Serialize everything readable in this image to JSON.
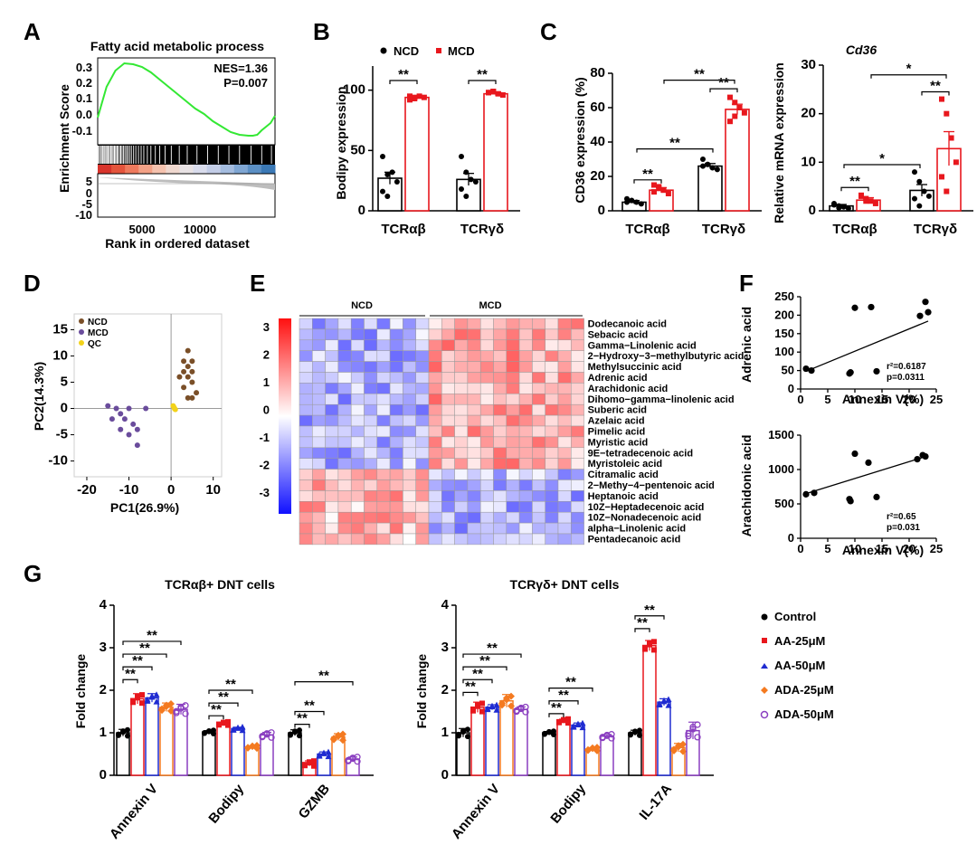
{
  "panel_labels": [
    "A",
    "B",
    "C",
    "D",
    "E",
    "F",
    "G"
  ],
  "colors": {
    "ncd": "#000000",
    "mcd": "#e8171d",
    "aa25": "#e8171d",
    "aa50": "#1f2bd1",
    "ada25": "#f47a20",
    "ada50": "#8a3fc0",
    "purple": "#6a4c9c",
    "brown": "#7a4f28",
    "qc": "#f2d21a",
    "green": "#33e833"
  },
  "chart_data": [
    {
      "id": "A",
      "type": "line",
      "title": "Fatty acid metabolic process",
      "ylabel": "Enrichment Score",
      "xlabel": "Rank in ordered dataset",
      "yticks": [
        "0.3",
        "0.2",
        "0.1",
        "0.0",
        "-0.1"
      ],
      "ylim": [
        -0.15,
        0.33
      ],
      "lower_yticks": [
        "5",
        "0",
        "-5",
        "-10"
      ],
      "xticks": [
        "5000",
        "10000"
      ],
      "xlim": [
        0,
        20000
      ],
      "annotations": [
        "NES=1.36",
        "P=0.007"
      ],
      "x": [
        0,
        1000,
        2000,
        3000,
        4000,
        5000,
        6000,
        7000,
        8000,
        9000,
        10000,
        11000,
        12000,
        13000,
        14000,
        15000,
        16000,
        17000,
        17500,
        18000,
        18500,
        19000,
        19500,
        20000
      ],
      "y": [
        0.0,
        0.17,
        0.26,
        0.3,
        0.295,
        0.28,
        0.25,
        0.21,
        0.17,
        0.13,
        0.09,
        0.05,
        0.02,
        -0.02,
        -0.05,
        -0.08,
        -0.095,
        -0.1,
        -0.1,
        -0.095,
        -0.07,
        -0.05,
        -0.03,
        0.01
      ],
      "hits": [
        50,
        180,
        320,
        430,
        560,
        640,
        780,
        900,
        1010,
        1130,
        1220,
        1350,
        1480,
        1600,
        1720,
        1850,
        1930,
        2050,
        2180,
        2300,
        2470,
        2600,
        2750,
        2900,
        3070,
        3250,
        3400,
        3600,
        3800,
        4050,
        4300,
        4600,
        4900,
        5200,
        5600,
        6000,
        6500,
        7000,
        7600,
        8300,
        9200,
        10100,
        11200,
        12400,
        13600,
        14800,
        16000,
        17300,
        18500,
        19600
      ],
      "color_strip": [
        "#d8342c",
        "#e4543c",
        "#ee7a5d",
        "#f3a186",
        "#f5c2ae",
        "#efd8cf",
        "#e8e2e4",
        "#d9dcec",
        "#c3cde7",
        "#a4bcdf",
        "#7fa6d3",
        "#5b8fc4",
        "#3b79b6"
      ]
    },
    {
      "id": "B",
      "type": "bar",
      "ylabel": "Bodipy expression",
      "ylim": [
        0,
        120
      ],
      "yticks": [
        "0",
        "50",
        "100"
      ],
      "categories": [
        "TCRαβ",
        "TCRγδ"
      ],
      "legend": [
        "NCD",
        "MCD"
      ],
      "series": [
        {
          "name": "NCD",
          "values": [
            27,
            26
          ],
          "err": [
            5,
            5
          ]
        },
        {
          "name": "MCD",
          "values": [
            94,
            97
          ],
          "err": [
            1.5,
            1.5
          ]
        }
      ],
      "points": [
        [
          [
            45,
            30,
            32,
            24,
            16,
            12
          ],
          [
            92,
            94,
            95,
            94,
            95,
            93
          ]
        ],
        [
          [
            45,
            32,
            26,
            24,
            18,
            12
          ],
          [
            98,
            99,
            97,
            96,
            98,
            99
          ]
        ]
      ],
      "sig": [
        "**",
        "**"
      ]
    },
    {
      "id": "C1",
      "type": "bar",
      "ylabel": "CD36 expression (%)",
      "ylim": [
        0,
        80
      ],
      "yticks": [
        "0",
        "20",
        "40",
        "60",
        "80"
      ],
      "categories": [
        "TCRαβ",
        "TCRγδ"
      ],
      "series": [
        {
          "name": "NCD",
          "values": [
            5,
            26
          ],
          "err": [
            1,
            1.5
          ]
        },
        {
          "name": "MCD",
          "values": [
            12,
            59
          ],
          "err": [
            1.5,
            3
          ]
        }
      ],
      "points": [
        [
          [
            7,
            6,
            5,
            4,
            5,
            6
          ],
          [
            15,
            13,
            12,
            10,
            11,
            14
          ]
        ],
        [
          [
            30,
            27,
            25,
            24,
            26,
            27
          ],
          [
            66,
            63,
            60,
            57,
            52,
            55
          ]
        ]
      ],
      "sig": [
        "**",
        "**",
        "**",
        "**"
      ]
    },
    {
      "id": "C2",
      "type": "bar",
      "title": "Cd36",
      "ylabel": "Relative mRNA expression",
      "ylim": [
        0,
        30
      ],
      "yticks": [
        "0",
        "10",
        "20",
        "30"
      ],
      "categories": [
        "TCRαβ",
        "TCRγδ"
      ],
      "series": [
        {
          "name": "NCD",
          "values": [
            1,
            4.2
          ],
          "err": [
            0.3,
            1.2
          ]
        },
        {
          "name": "MCD",
          "values": [
            2.2,
            12.8
          ],
          "err": [
            0.5,
            3.5
          ]
        }
      ],
      "points": [
        [
          [
            1.5,
            1,
            0.8,
            0.5,
            1.2,
            0.6
          ],
          [
            3,
            2.5,
            2,
            1.5,
            3.2,
            2
          ]
        ],
        [
          [
            8,
            6,
            4,
            3,
            2.5,
            1
          ]
        ],
        [
          [
            23,
            20,
            15,
            10,
            7,
            4
          ]
        ]
      ],
      "sig": [
        "**",
        "**",
        "*",
        "*"
      ]
    },
    {
      "id": "D",
      "type": "scatter",
      "xlabel": "PC1(26.9%)",
      "ylabel": "PC2(14.3%)",
      "xticks": [
        "-20",
        "-10",
        "0",
        "10"
      ],
      "yticks": [
        "15",
        "10",
        "5",
        "0",
        "-5",
        "-10"
      ],
      "xlim": [
        -23,
        12
      ],
      "ylim": [
        -13,
        18
      ],
      "legend": [
        "NCD",
        "MCD",
        "QC"
      ],
      "series": [
        {
          "name": "NCD",
          "points": [
            [
              4,
              11
            ],
            [
              3,
              9
            ],
            [
              5,
              9
            ],
            [
              4,
              8
            ],
            [
              3,
              7
            ],
            [
              5,
              7
            ],
            [
              2,
              6
            ],
            [
              4,
              6
            ],
            [
              5,
              5
            ],
            [
              3,
              4
            ],
            [
              6,
              3
            ],
            [
              4,
              2
            ],
            [
              5,
              2
            ]
          ]
        },
        {
          "name": "MCD",
          "points": [
            [
              -15,
              0.5
            ],
            [
              -13,
              0
            ],
            [
              -10,
              0
            ],
            [
              -12,
              -1
            ],
            [
              -14,
              -2
            ],
            [
              -11,
              -2
            ],
            [
              -9,
              -3
            ],
            [
              -8,
              -4
            ],
            [
              -12,
              -4
            ],
            [
              -10,
              -5
            ],
            [
              -6,
              0
            ],
            [
              -8,
              -7
            ]
          ]
        },
        {
          "name": "QC",
          "points": [
            [
              0.5,
              0.5
            ],
            [
              0.8,
              0
            ],
            [
              1,
              -0.2
            ],
            [
              0.7,
              0.2
            ]
          ]
        }
      ]
    },
    {
      "id": "E",
      "type": "heatmap",
      "groups": [
        "NCD",
        "MCD"
      ],
      "scale_ticks": [
        "3",
        "2",
        "1",
        "0",
        "-1",
        "-2",
        "-3"
      ],
      "rows": [
        "Dodecanoic acid",
        "Sebacic acid",
        "Gamma−Linolenic acid",
        "2−Hydroxy−3−methylbutyric acid",
        "Methylsuccinic acid",
        "Adrenic acid",
        "Arachidonic acid",
        "Dihomo−gamma−linolenic acid",
        "Suberic acid",
        "Azelaic acid",
        "Pimelic acid",
        "Myristic acid",
        "9E−tetradecenoic acid",
        "Myristoleic acid",
        "Citramalic acid",
        "2−Methy−4−pentenoic acid",
        "Heptanoic acid",
        "10Z−Heptadecenoic acid",
        "10Z−Nonadecenoic acid",
        "alpha−Linolenic acid",
        "Pentadecanoic acid"
      ],
      "highlight_rows": [
        "Adrenic acid",
        "Arachidonic acid"
      ],
      "highlight_color": "#e8171d",
      "n_cols": 22
    },
    {
      "id": "F1",
      "type": "scatter",
      "ylabel": "Adrenic acid",
      "xlabel": "Annexin V(%)",
      "xticks": [
        "0",
        "5",
        "10",
        "15",
        "20",
        "25"
      ],
      "yticks": [
        "0",
        "50",
        "100",
        "150",
        "200",
        "250"
      ],
      "xlim": [
        0,
        25
      ],
      "ylim": [
        0,
        250
      ],
      "stats": [
        "r²=0.6187",
        "p=0.0311"
      ],
      "points": [
        [
          1,
          55
        ],
        [
          2,
          50
        ],
        [
          9,
          42
        ],
        [
          9.2,
          45
        ],
        [
          10,
          220
        ],
        [
          13,
          222
        ],
        [
          14,
          48
        ],
        [
          22,
          198
        ],
        [
          23,
          236
        ],
        [
          23.5,
          208
        ]
      ],
      "fit": [
        [
          1,
          48
        ],
        [
          23.5,
          184
        ]
      ]
    },
    {
      "id": "F2",
      "type": "scatter",
      "ylabel": "Arachidonic acid",
      "xlabel": "Annexin V(%)",
      "xticks": [
        "0",
        "5",
        "10",
        "15",
        "20",
        "25"
      ],
      "yticks": [
        "0",
        "500",
        "1000",
        "1500"
      ],
      "xlim": [
        0,
        25
      ],
      "ylim": [
        0,
        1500
      ],
      "stats": [
        "r²=0.65",
        "p=0.031"
      ],
      "points": [
        [
          1,
          640
        ],
        [
          2.5,
          660
        ],
        [
          9,
          570
        ],
        [
          9.2,
          540
        ],
        [
          10,
          1230
        ],
        [
          12.5,
          1100
        ],
        [
          14,
          600
        ],
        [
          21.5,
          1150
        ],
        [
          22.5,
          1210
        ],
        [
          23,
          1190
        ]
      ],
      "fit": [
        [
          1,
          650
        ],
        [
          23.5,
          1200
        ]
      ]
    },
    {
      "id": "G1",
      "type": "bar",
      "title": "TCRαβ+ DNT cells",
      "ylabel": "Fold change",
      "ylim": [
        0,
        4
      ],
      "yticks": [
        "0",
        "1",
        "2",
        "3",
        "4"
      ],
      "categories": [
        "Annexin V",
        "Bodipy",
        "GZMB"
      ],
      "legend": [
        "Control",
        "AA-25μM",
        "AA-50μM",
        "ADA-25μM",
        "ADA-50μM"
      ],
      "series": [
        {
          "name": "Control",
          "values": [
            1.0,
            1.02,
            1.0
          ],
          "err": [
            0.08,
            0.03,
            0.07
          ]
        },
        {
          "name": "AA-25μM",
          "values": [
            1.8,
            1.22,
            0.28
          ],
          "err": [
            0.12,
            0.03,
            0.06
          ]
        },
        {
          "name": "AA-50μM",
          "values": [
            1.82,
            1.1,
            0.5
          ],
          "err": [
            0.1,
            0.03,
            0.05
          ]
        },
        {
          "name": "ADA-25μM",
          "values": [
            1.6,
            0.67,
            0.9
          ],
          "err": [
            0.1,
            0.02,
            0.08
          ]
        },
        {
          "name": "ADA-50μM",
          "values": [
            1.55,
            0.95,
            0.38
          ],
          "err": [
            0.12,
            0.06,
            0.05
          ]
        }
      ],
      "sig": [
        "**",
        "**",
        "**",
        "**",
        "**",
        "**",
        "**",
        "**",
        "**"
      ]
    },
    {
      "id": "G2",
      "type": "bar",
      "title": "TCRγδ+ DNT cells",
      "ylabel": "Fold change",
      "ylim": [
        0,
        4
      ],
      "yticks": [
        "0",
        "1",
        "2",
        "3",
        "4"
      ],
      "categories": [
        "Annexin V",
        "Bodipy",
        "IL-17A"
      ],
      "series": [
        {
          "name": "Control",
          "values": [
            1.0,
            1.0,
            1.0
          ],
          "err": [
            0.1,
            0.03,
            0.06
          ]
        },
        {
          "name": "AA-25μM",
          "values": [
            1.6,
            1.28,
            3.05
          ],
          "err": [
            0.12,
            0.04,
            0.12
          ]
        },
        {
          "name": "AA-50μM",
          "values": [
            1.6,
            1.18,
            1.72
          ],
          "err": [
            0.06,
            0.05,
            0.08
          ]
        },
        {
          "name": "ADA-25μM",
          "values": [
            1.75,
            0.62,
            0.65
          ],
          "err": [
            0.15,
            0.03,
            0.1
          ]
        },
        {
          "name": "ADA-50μM",
          "values": [
            1.55,
            0.92,
            1.05
          ],
          "err": [
            0.06,
            0.04,
            0.2
          ]
        }
      ],
      "sig": [
        "**",
        "**",
        "**",
        "**",
        "**",
        "**",
        "**",
        "**"
      ]
    }
  ]
}
